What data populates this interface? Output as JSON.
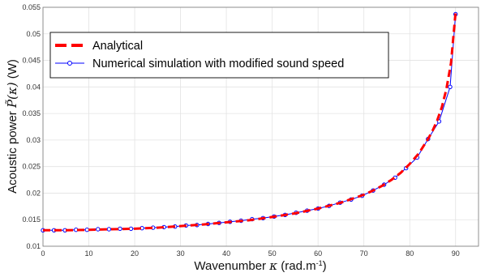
{
  "chart_data": {
    "type": "line",
    "xlabel_prefix": "Wavenumber",
    "xlabel_symbol": "κ",
    "xlabel_unit": "(rad.m",
    "xlabel_unit_sup": "-1",
    "xlabel_unit_end": ")",
    "ylabel_prefix": "Acoustic power",
    "ylabel_symbol": "P̃(κ)",
    "ylabel_unit": "(W)",
    "xlim": [
      0,
      95
    ],
    "ylim": [
      0.01,
      0.055
    ],
    "xticks": [
      "0",
      "10",
      "20",
      "30",
      "40",
      "50",
      "60",
      "70",
      "80",
      "90"
    ],
    "yticks": [
      "0.01",
      "0.015",
      "0.02",
      "0.025",
      "0.03",
      "0.035",
      "0.04",
      "0.045",
      "0.05",
      "0.055"
    ],
    "grid": true,
    "legend_position": "top-left",
    "series": [
      {
        "name": "Analytical",
        "style": "dashed",
        "color": "#ff0000",
        "x": [
          0,
          5,
          10,
          15,
          20,
          25,
          30,
          35,
          40,
          45,
          50,
          55,
          60,
          65,
          70,
          72,
          74,
          76,
          78,
          80,
          82,
          84,
          85,
          86,
          87,
          88,
          89,
          90
        ],
        "y": [
          0.013,
          0.013,
          0.0131,
          0.0132,
          0.0133,
          0.0135,
          0.0138,
          0.0141,
          0.0145,
          0.0149,
          0.0155,
          0.0162,
          0.0171,
          0.0182,
          0.0197,
          0.0205,
          0.0214,
          0.0225,
          0.0238,
          0.0255,
          0.0275,
          0.0302,
          0.0318,
          0.0337,
          0.0362,
          0.0396,
          0.0445,
          0.054
        ]
      },
      {
        "name": "Numerical simulation with modified sound speed",
        "style": "solid-marker",
        "color": "#0000ff",
        "x": [
          0,
          2.4,
          4.8,
          7.2,
          9.6,
          12,
          14.4,
          16.8,
          19.2,
          21.6,
          24,
          26.4,
          28.8,
          31.2,
          33.6,
          36,
          38.4,
          40.8,
          43.2,
          45.6,
          48,
          50.4,
          52.8,
          55.2,
          57.6,
          60,
          62.4,
          64.8,
          67.2,
          69.6,
          72,
          74.4,
          76.8,
          79.2,
          81.6,
          84,
          86.4,
          88.8,
          90
        ],
        "y": [
          0.013,
          0.013,
          0.013,
          0.0131,
          0.0131,
          0.0132,
          0.0132,
          0.0133,
          0.0133,
          0.0134,
          0.0135,
          0.0136,
          0.0137,
          0.0139,
          0.014,
          0.0142,
          0.0144,
          0.0146,
          0.0148,
          0.0151,
          0.0153,
          0.0156,
          0.0159,
          0.0163,
          0.0167,
          0.0171,
          0.0176,
          0.0182,
          0.0188,
          0.0195,
          0.0205,
          0.0216,
          0.0229,
          0.0247,
          0.0267,
          0.0302,
          0.0335,
          0.04,
          0.0537
        ]
      }
    ]
  }
}
